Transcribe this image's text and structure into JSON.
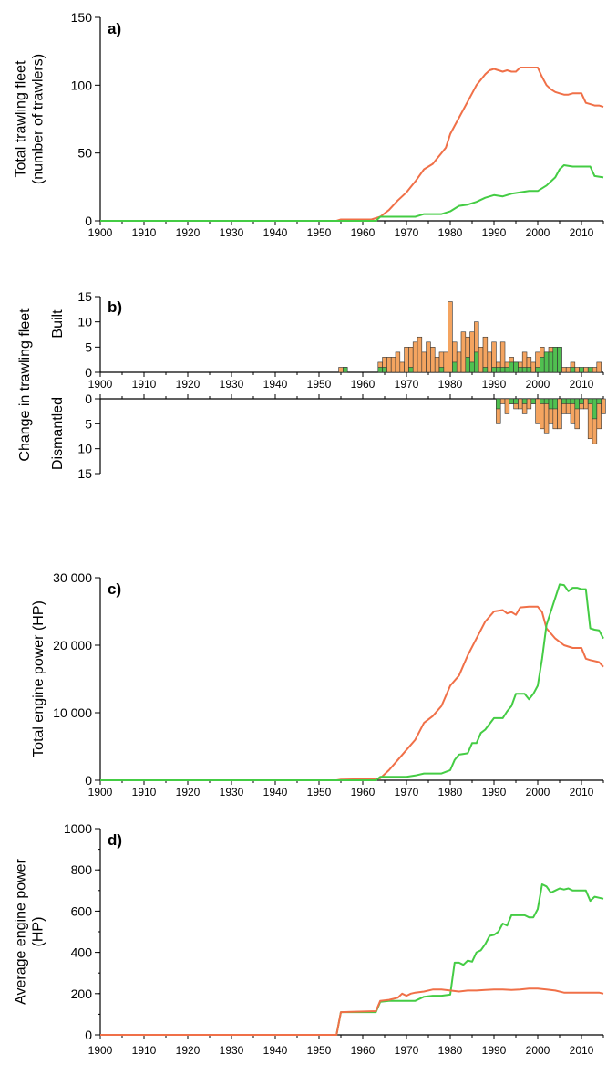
{
  "colors": {
    "orange": "#f07048",
    "orange_bar": "#f4a460",
    "green": "#44cc44",
    "green_bar": "#50c050",
    "axis": "#000000"
  },
  "chart_data": [
    {
      "panel": "a",
      "type": "line",
      "panel_label": "a)",
      "ylabel_lines": [
        "Total trawling fleet",
        "(number of trawlers)"
      ],
      "xlim": [
        1900,
        2015
      ],
      "ylim": [
        0,
        150
      ],
      "yticks": [
        0,
        50,
        100,
        150
      ],
      "xticks": [
        1900,
        1910,
        1920,
        1930,
        1940,
        1950,
        1960,
        1970,
        1980,
        1990,
        2000,
        2010
      ],
      "series": [
        {
          "color": "orange",
          "x": [
            1900,
            1954,
            1955,
            1962,
            1963,
            1964,
            1966,
            1968,
            1970,
            1971,
            1972,
            1974,
            1976,
            1977,
            1978,
            1979,
            1980,
            1981,
            1982,
            1983,
            1984,
            1985,
            1986,
            1987,
            1988,
            1989,
            1990,
            1991,
            1992,
            1993,
            1994,
            1995,
            1996,
            1997,
            1998,
            1999,
            2000,
            2001,
            2002,
            2003,
            2004,
            2005,
            2006,
            2007,
            2008,
            2009,
            2010,
            2011,
            2012,
            2013,
            2014,
            2015
          ],
          "y": [
            0,
            0,
            1,
            1,
            2,
            3,
            8,
            15,
            21,
            25,
            29,
            38,
            42,
            46,
            50,
            54,
            64,
            70,
            76,
            82,
            88,
            94,
            100,
            104,
            108,
            111,
            112,
            111,
            110,
            111,
            110,
            110,
            113,
            113,
            113,
            113,
            113,
            106,
            100,
            97,
            95,
            94,
            93,
            93,
            94,
            94,
            94,
            87,
            86,
            85,
            85,
            84
          ]
        },
        {
          "color": "green",
          "x": [
            1900,
            1963,
            1964,
            1966,
            1968,
            1970,
            1972,
            1973,
            1974,
            1976,
            1978,
            1980,
            1981,
            1982,
            1984,
            1986,
            1988,
            1990,
            1992,
            1994,
            1996,
            1998,
            2000,
            2002,
            2004,
            2005,
            2006,
            2008,
            2010,
            2012,
            2013,
            2015
          ],
          "y": [
            0,
            0,
            3,
            3,
            3,
            3,
            3,
            4,
            5,
            5,
            5,
            7,
            9,
            11,
            12,
            14,
            17,
            19,
            18,
            20,
            21,
            22,
            22,
            26,
            32,
            38,
            41,
            40,
            40,
            40,
            33,
            32
          ]
        }
      ]
    },
    {
      "panel": "b",
      "type": "bar",
      "panel_label": "b)",
      "ylabel": "Change in trawling fleet",
      "built_label": "Built",
      "dismantled_label": "Dismantled",
      "xlim": [
        1900,
        2015
      ],
      "ylim": [
        0,
        15
      ],
      "yticks": [
        0,
        5,
        10,
        15
      ],
      "xticks": [
        1900,
        1910,
        1920,
        1930,
        1940,
        1950,
        1960,
        1970,
        1980,
        1990,
        2000,
        2010
      ],
      "built_orange": {
        "years": [
          1955,
          1956,
          1964,
          1965,
          1966,
          1967,
          1968,
          1969,
          1970,
          1971,
          1972,
          1973,
          1974,
          1975,
          1976,
          1977,
          1978,
          1979,
          1980,
          1981,
          1982,
          1983,
          1984,
          1985,
          1986,
          1987,
          1988,
          1989,
          1990,
          1991,
          1992,
          1993,
          1994,
          1995,
          1996,
          1997,
          1998,
          1999,
          2000,
          2001,
          2002,
          2003,
          2004,
          2005,
          2006,
          2007,
          2008,
          2009,
          2011,
          2013,
          2014
        ],
        "values": [
          1,
          1,
          2,
          3,
          3,
          3,
          4,
          2,
          5,
          5,
          6,
          7,
          4,
          6,
          5,
          3,
          4,
          4,
          14,
          6,
          4,
          8,
          7,
          8,
          10,
          5,
          7,
          4,
          6,
          2,
          6,
          2,
          3,
          2,
          2,
          4,
          3,
          2,
          4,
          5,
          4,
          5,
          5,
          5,
          1,
          1,
          2,
          1,
          1,
          1,
          2
        ]
      },
      "built_green": {
        "years": [
          1956,
          1964,
          1965,
          1971,
          1978,
          1981,
          1984,
          1985,
          1986,
          1988,
          1990,
          1991,
          1992,
          1993,
          1994,
          1995,
          1996,
          1997,
          1998,
          2000,
          2001,
          2002,
          2003,
          2004,
          2005,
          2008,
          2010,
          2012
        ],
        "values": [
          1,
          1,
          1,
          1,
          1,
          2,
          3,
          2,
          4,
          1,
          1,
          1,
          1,
          1,
          2,
          2,
          1,
          1,
          1,
          1,
          3,
          4,
          4,
          5,
          5,
          1,
          1,
          1
        ]
      },
      "dismantled_orange": {
        "years": [
          1991,
          1992,
          1993,
          1994,
          1995,
          1996,
          1997,
          1998,
          1999,
          2000,
          2001,
          2002,
          2003,
          2004,
          2005,
          2006,
          2007,
          2008,
          2009,
          2010,
          2011,
          2012,
          2013,
          2014,
          2015
        ],
        "values": [
          5,
          1,
          3,
          1,
          2,
          2,
          3,
          2,
          1,
          5,
          6,
          7,
          5,
          6,
          6,
          3,
          3,
          5,
          6,
          2,
          2,
          8,
          9,
          6,
          3
        ]
      },
      "dismantled_green": {
        "years": [
          1991,
          1994,
          1995,
          1997,
          1999,
          2001,
          2002,
          2003,
          2004,
          2006,
          2007,
          2008,
          2009,
          2010,
          2012,
          2013,
          2014
        ],
        "values": [
          2,
          1,
          1,
          1,
          1,
          1,
          1,
          2,
          2,
          1,
          1,
          1,
          2,
          1,
          1,
          4,
          1
        ]
      }
    },
    {
      "panel": "c",
      "type": "line",
      "panel_label": "c)",
      "ylabel_lines": [
        "Total engine power (HP)"
      ],
      "xlim": [
        1900,
        2015
      ],
      "ylim": [
        0,
        30000
      ],
      "yticks": [
        0,
        10000,
        20000,
        30000
      ],
      "ytick_labels": [
        "0",
        "10 000",
        "20 000",
        "30 000"
      ],
      "xticks": [
        1900,
        1910,
        1920,
        1930,
        1940,
        1950,
        1960,
        1970,
        1980,
        1990,
        2000,
        2010
      ],
      "series": [
        {
          "color": "orange",
          "x": [
            1900,
            1954,
            1955,
            1963,
            1964,
            1966,
            1968,
            1970,
            1972,
            1974,
            1976,
            1978,
            1980,
            1982,
            1984,
            1986,
            1988,
            1990,
            1992,
            1993,
            1994,
            1995,
            1996,
            1998,
            2000,
            2001,
            2002,
            2004,
            2006,
            2008,
            2010,
            2011,
            2012,
            2014,
            2015
          ],
          "y": [
            0,
            0,
            100,
            200,
            300,
            1500,
            3000,
            4500,
            6000,
            8500,
            9500,
            11000,
            14000,
            15500,
            18500,
            21000,
            23500,
            25000,
            25200,
            24700,
            24900,
            24500,
            25600,
            25700,
            25700,
            24900,
            22500,
            21000,
            20000,
            19600,
            19600,
            18000,
            17800,
            17500,
            16800
          ]
        },
        {
          "color": "green",
          "x": [
            1900,
            1963,
            1964,
            1966,
            1970,
            1972,
            1974,
            1976,
            1978,
            1980,
            1981,
            1982,
            1984,
            1985,
            1986,
            1987,
            1988,
            1990,
            1992,
            1993,
            1994,
            1995,
            1996,
            1997,
            1998,
            1999,
            2000,
            2001,
            2002,
            2003,
            2004,
            2005,
            2006,
            2007,
            2008,
            2009,
            2010,
            2011,
            2012,
            2013,
            2014,
            2015
          ],
          "y": [
            0,
            0,
            500,
            500,
            500,
            700,
            1000,
            1000,
            1000,
            1500,
            3000,
            3800,
            4000,
            5500,
            5500,
            7000,
            7500,
            9200,
            9200,
            10200,
            11000,
            12800,
            12800,
            12800,
            12000,
            12800,
            14000,
            18000,
            23000,
            25000,
            27000,
            29000,
            28900,
            28000,
            28500,
            28500,
            28300,
            28300,
            22500,
            22300,
            22200,
            21000
          ]
        }
      ]
    },
    {
      "panel": "d",
      "type": "line",
      "panel_label": "d)",
      "ylabel_lines": [
        "Average engine power",
        "(HP)"
      ],
      "xlim": [
        1900,
        2015
      ],
      "ylim": [
        0,
        1000
      ],
      "yticks": [
        0,
        200,
        400,
        600,
        800,
        1000
      ],
      "xticks": [
        1900,
        1910,
        1920,
        1930,
        1940,
        1950,
        1960,
        1970,
        1980,
        1990,
        2000,
        2010
      ],
      "series": [
        {
          "color": "green",
          "x": [
            1900,
            1954,
            1955,
            1963,
            1964,
            1966,
            1972,
            1974,
            1976,
            1978,
            1980,
            1981,
            1982,
            1983,
            1984,
            1985,
            1986,
            1987,
            1988,
            1989,
            1990,
            1991,
            1992,
            1993,
            1994,
            1995,
            1996,
            1997,
            1998,
            1999,
            2000,
            2001,
            2002,
            2003,
            2004,
            2005,
            2006,
            2007,
            2008,
            2009,
            2010,
            2011,
            2012,
            2013,
            2014,
            2015
          ],
          "y": [
            0,
            0,
            110,
            110,
            160,
            165,
            165,
            185,
            190,
            190,
            195,
            350,
            350,
            340,
            360,
            355,
            400,
            410,
            440,
            480,
            485,
            500,
            540,
            530,
            580,
            580,
            580,
            580,
            570,
            570,
            610,
            730,
            720,
            690,
            700,
            710,
            705,
            710,
            700,
            700,
            700,
            700,
            650,
            670,
            665,
            660
          ]
        },
        {
          "color": "orange",
          "x": [
            1900,
            1954,
            1955,
            1963,
            1964,
            1966,
            1968,
            1969,
            1970,
            1971,
            1972,
            1974,
            1976,
            1978,
            1980,
            1982,
            1984,
            1986,
            1988,
            1990,
            1992,
            1994,
            1996,
            1998,
            2000,
            2002,
            2004,
            2006,
            2008,
            2010,
            2012,
            2014,
            2015
          ],
          "y": [
            0,
            0,
            110,
            115,
            165,
            170,
            180,
            200,
            190,
            200,
            205,
            210,
            220,
            220,
            215,
            210,
            215,
            215,
            218,
            220,
            220,
            218,
            220,
            225,
            225,
            220,
            215,
            205,
            205,
            205,
            205,
            205,
            200
          ]
        }
      ]
    }
  ]
}
